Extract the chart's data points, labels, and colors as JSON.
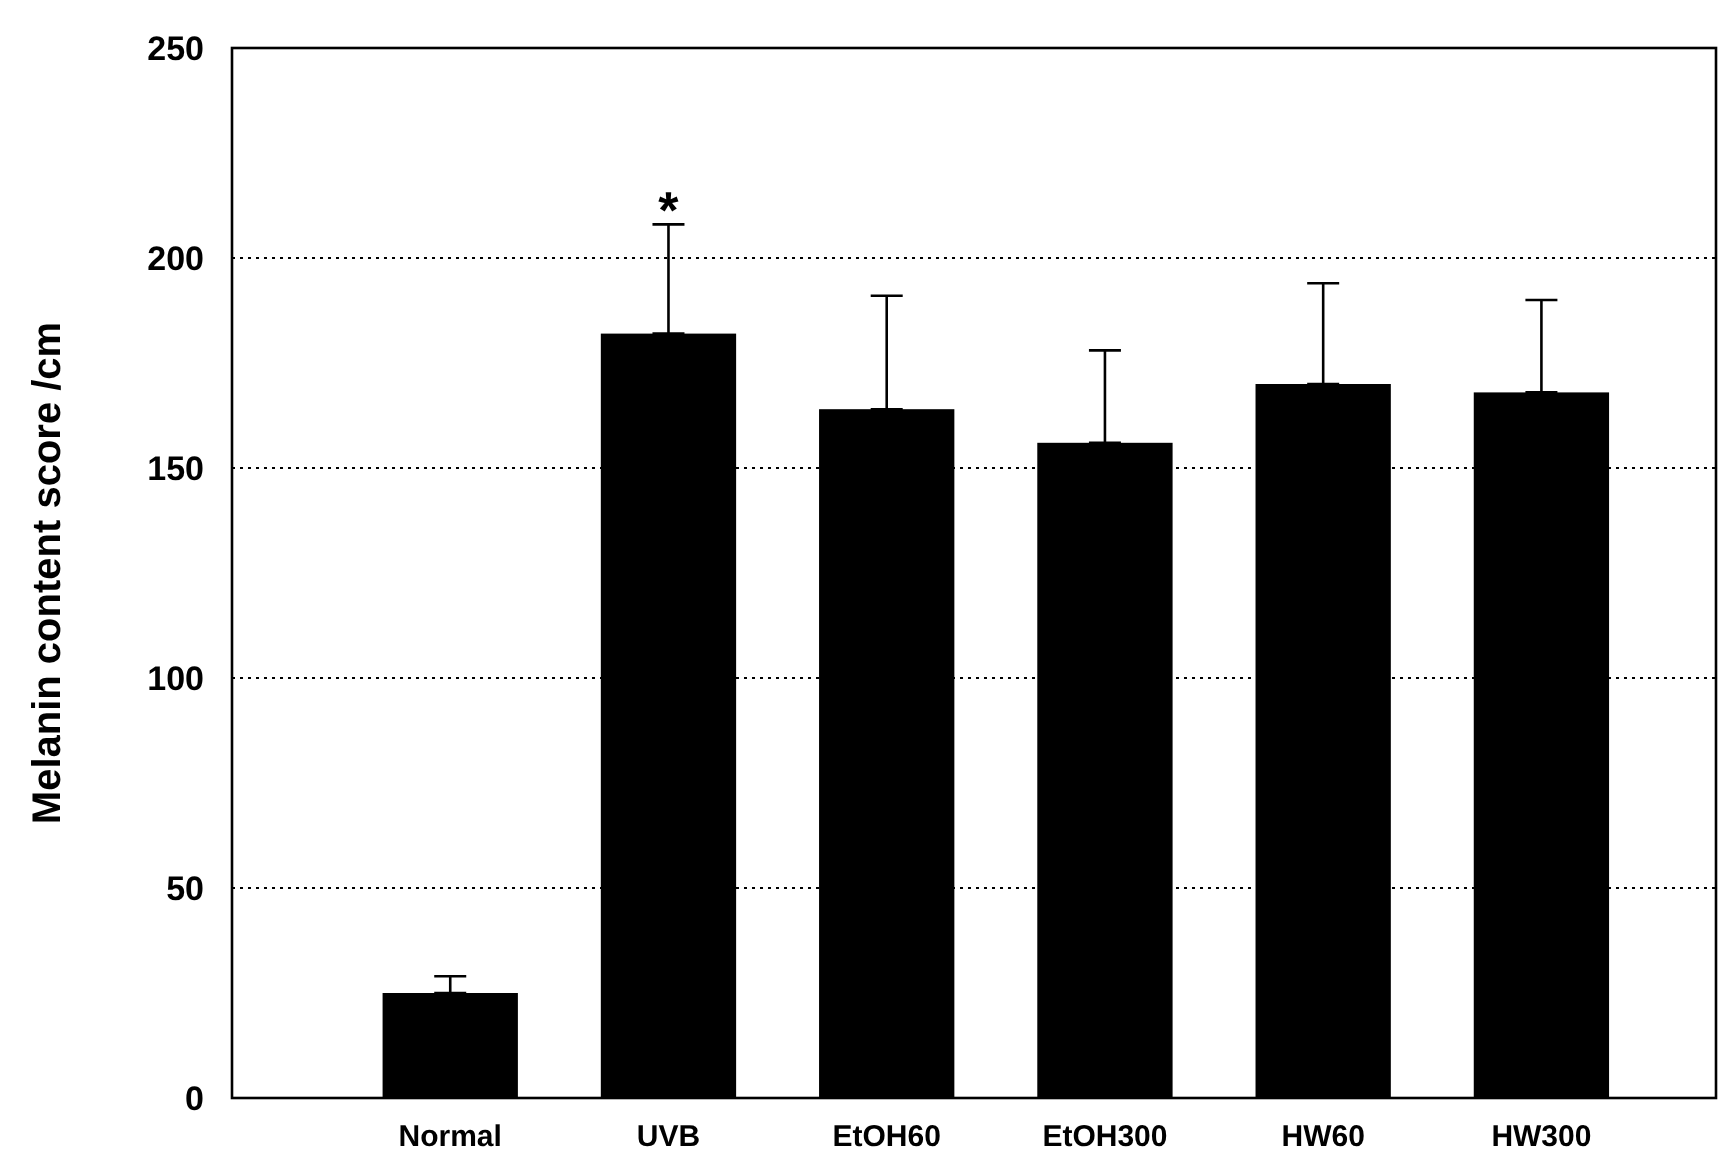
{
  "chart_data": {
    "type": "bar",
    "ylabel": "Melanin content score /cm",
    "categories": [
      "Normal",
      "UVB",
      "EtOH60",
      "EtOH300",
      "HW60",
      "HW300"
    ],
    "values": [
      25,
      182,
      164,
      156,
      170,
      168
    ],
    "errors": [
      [
        25,
        29
      ],
      [
        182,
        208
      ],
      [
        164,
        191
      ],
      [
        156,
        178
      ],
      [
        170,
        194
      ],
      [
        168,
        190
      ]
    ],
    "color": "#000000",
    "ylim": [
      0,
      250
    ],
    "yticks": [
      0,
      50,
      100,
      150,
      200,
      250
    ],
    "grid": "y",
    "annotations": [
      {
        "text": "*",
        "x": "UVB",
        "y": 208
      }
    ]
  }
}
